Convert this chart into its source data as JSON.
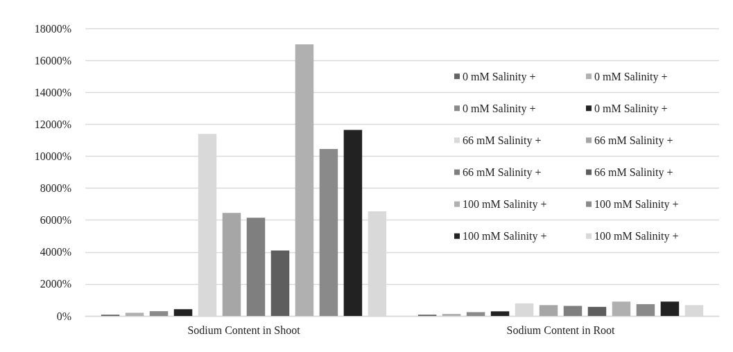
{
  "chart_data": {
    "type": "bar",
    "categories": [
      "Sodium Content in Shoot",
      "Sodium Content in Root"
    ],
    "series": [
      {
        "name": "0 mM Salinity +",
        "color": "#636363",
        "values": [
          80,
          80
        ]
      },
      {
        "name": "0 mM Salinity +",
        "color": "#b0b0b0",
        "values": [
          200,
          130
        ]
      },
      {
        "name": "0 mM Salinity +",
        "color": "#8a8a8a",
        "values": [
          300,
          240
        ]
      },
      {
        "name": "0 mM Salinity +",
        "color": "#222222",
        "values": [
          420,
          290
        ]
      },
      {
        "name": "66 mM Salinity +",
        "color": "#d9d9d9",
        "values": [
          11400,
          790
        ]
      },
      {
        "name": "66 mM Salinity +",
        "color": "#a6a6a6",
        "values": [
          6450,
          680
        ]
      },
      {
        "name": "66 mM Salinity +",
        "color": "#7f7f7f",
        "values": [
          6150,
          630
        ]
      },
      {
        "name": "66 mM Salinity +",
        "color": "#5e5e5e",
        "values": [
          4100,
          570
        ]
      },
      {
        "name": "100 mM Salinity +",
        "color": "#b0b0b0",
        "values": [
          17000,
          900
        ]
      },
      {
        "name": "100 mM Salinity +",
        "color": "#8a8a8a",
        "values": [
          10450,
          740
        ]
      },
      {
        "name": "100 mM Salinity +",
        "color": "#222222",
        "values": [
          11650,
          900
        ]
      },
      {
        "name": "100 mM Salinity +",
        "color": "#d9d9d9",
        "values": [
          6550,
          680
        ]
      }
    ],
    "ylim": [
      0,
      18000
    ],
    "yticks": [
      {
        "value": 0,
        "label": "0%"
      },
      {
        "value": 2000,
        "label": "2000%"
      },
      {
        "value": 4000,
        "label": "4000%"
      },
      {
        "value": 6000,
        "label": "6000%"
      },
      {
        "value": 8000,
        "label": "8000%"
      },
      {
        "value": 10000,
        "label": "10000%"
      },
      {
        "value": 12000,
        "label": "12000%"
      },
      {
        "value": 14000,
        "label": "14000%"
      },
      {
        "value": 16000,
        "label": "16000%"
      },
      {
        "value": 18000,
        "label": "18000%"
      }
    ],
    "grid": "y",
    "legend": "top right"
  }
}
